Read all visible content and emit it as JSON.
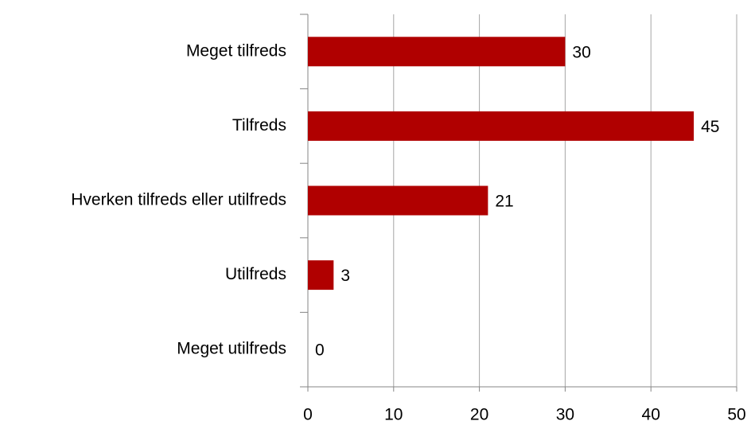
{
  "chart_data": {
    "type": "bar",
    "orientation": "horizontal",
    "categories": [
      "Meget tilfreds",
      "Tilfreds",
      "Hverken tilfreds eller utilfreds",
      "Utilfreds",
      "Meget utilfreds"
    ],
    "values": [
      30,
      45,
      21,
      3,
      0
    ],
    "color": "#b00000",
    "xlim": [
      0,
      50
    ],
    "xticks": [
      0,
      10,
      20,
      30,
      40,
      50
    ],
    "grid": true
  }
}
